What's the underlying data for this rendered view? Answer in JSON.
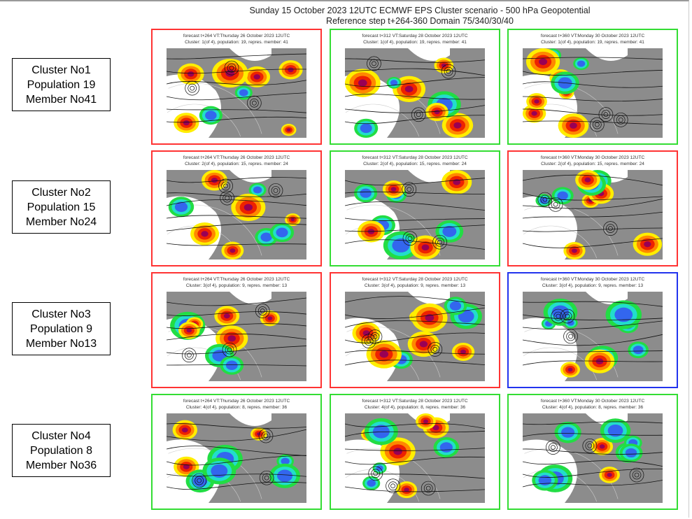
{
  "header": {
    "title": "Sunday 15 October 2023 12UTC ECMWF EPS Cluster scenario - 500 hPa Geopotential",
    "subtitle": "Reference step t+264-360 Domain 75/340/30/40"
  },
  "colors": {
    "red": "#ff3333",
    "green": "#33dd33",
    "blue": "#2233ee"
  },
  "chart_data": {
    "type": "heatmap",
    "title": "Sunday 15 October 2023 12UTC ECMWF EPS Cluster scenario - 500 hPa Geopotential",
    "columns": [
      {
        "step": "t+264",
        "valid": "Thursday 26 October 2023 12UTC"
      },
      {
        "step": "t+312",
        "valid": "Saturday 28 October 2023 12UTC"
      },
      {
        "step": "t+360",
        "valid": "Monday 30 October 2023 12UTC"
      }
    ],
    "clusters": [
      {
        "label": [
          "Cluster No1",
          "Population 19",
          "Member No41"
        ],
        "panels": [
          {
            "line1": "forecast t+264 VT:Thursday 26 October 2023 12UTC",
            "line2": "Cluster: 1(of 4), population: 19, repres. member: 41",
            "border": "red"
          },
          {
            "line1": "forecast t+312 VT:Saturday 28 October 2023 12UTC",
            "line2": "Cluster: 1(of 4), population: 19, repres. member: 41",
            "border": "green"
          },
          {
            "line1": "forecast t+360 VT:Monday 30 October 2023 12UTC",
            "line2": "Cluster: 1(of 4), population: 19, repres. member: 41",
            "border": "green"
          }
        ]
      },
      {
        "label": [
          "Cluster No2",
          "Population 15",
          "Member No24"
        ],
        "panels": [
          {
            "line1": "forecast t+264 VT:Thursday 26 October 2023 12UTC",
            "line2": "Cluster: 2(of 4), population: 15, repres. member: 24",
            "border": "red"
          },
          {
            "line1": "forecast t+312 VT:Saturday 28 October 2023 12UTC",
            "line2": "Cluster: 2(of 4), population: 15, repres. member: 24",
            "border": "green"
          },
          {
            "line1": "forecast t+360 VT:Monday 30 October 2023 12UTC",
            "line2": "Cluster: 2(of 4), population: 15, repres. member: 24",
            "border": "red"
          }
        ]
      },
      {
        "label": [
          "Cluster No3",
          "Population 9",
          "Member No13"
        ],
        "panels": [
          {
            "line1": "forecast t+264 VT:Thursday 26 October 2023 12UTC",
            "line2": "Cluster: 3(of 4), population: 9, repres. member: 13",
            "border": "red"
          },
          {
            "line1": "forecast t+312 VT:Saturday 28 October 2023 12UTC",
            "line2": "Cluster: 3(of 4), population: 9, repres. member: 13",
            "border": "red"
          },
          {
            "line1": "forecast t+360 VT:Monday 30 October 2023 12UTC",
            "line2": "Cluster: 3(of 4), population: 9, repres. member: 13",
            "border": "blue"
          }
        ]
      },
      {
        "label": [
          "Cluster No4",
          "Population 8",
          "Member No36"
        ],
        "panels": [
          {
            "line1": "forecast t+264 VT:Thursday 26 October 2023 12UTC",
            "line2": "Cluster: 4(of 4), population: 8, repres. member: 36",
            "border": "green"
          },
          {
            "line1": "forecast t+312 VT:Saturday 28 October 2023 12UTC",
            "line2": "Cluster: 4(of 4), population: 8, repres. member: 36",
            "border": "green"
          },
          {
            "line1": "forecast t+360 VT:Monday 30 October 2023 12UTC",
            "line2": "Cluster: 4(of 4), population: 8, repres. member: 36",
            "border": "green"
          }
        ]
      }
    ]
  }
}
